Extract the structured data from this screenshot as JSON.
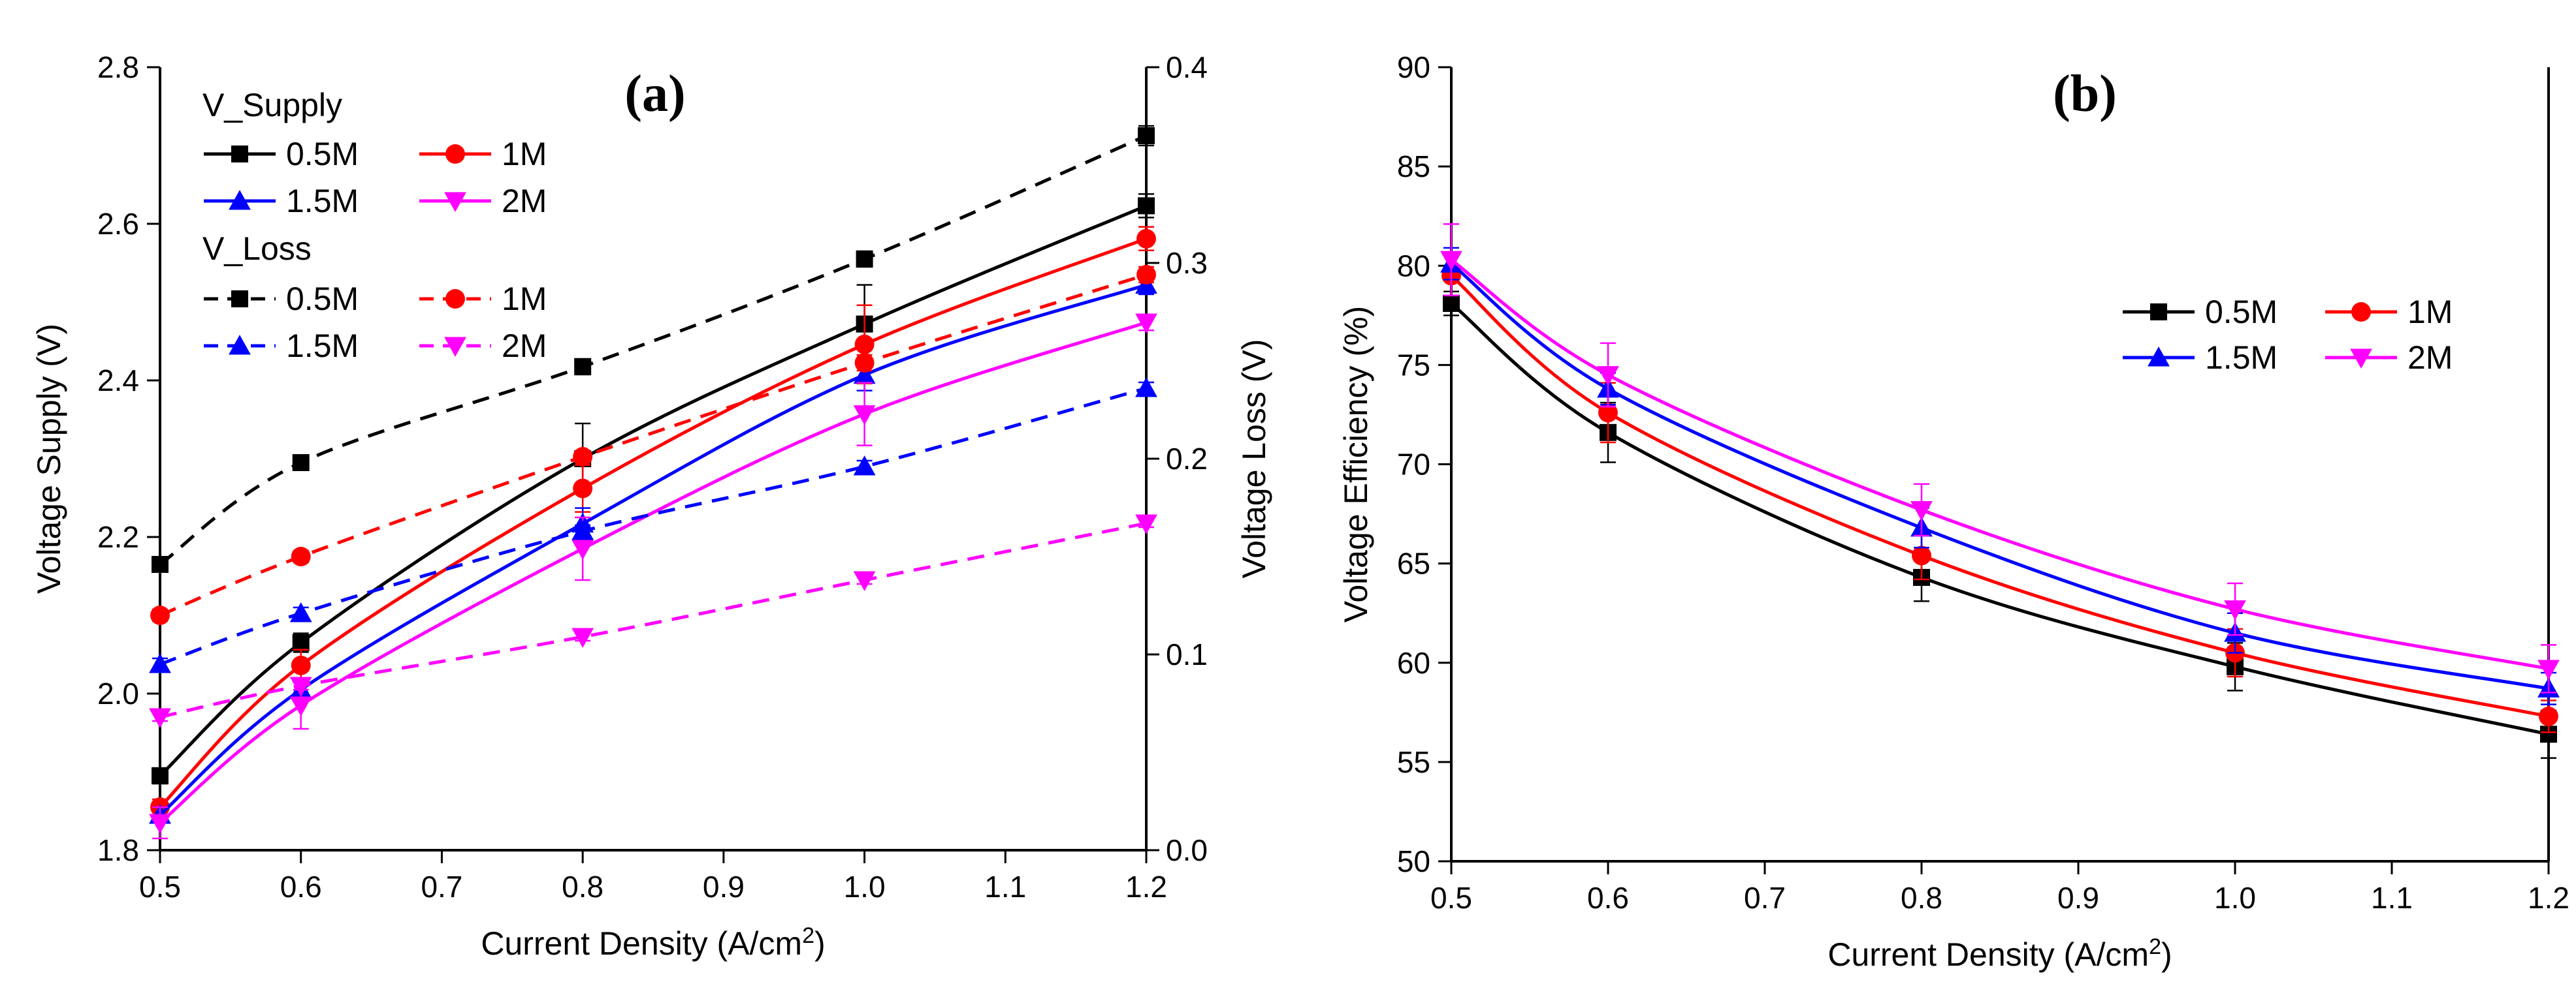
{
  "colors": {
    "0.5M": "#000000",
    "1M": "#ff0000",
    "1.5M": "#0000ff",
    "2M": "#ff00ff"
  },
  "chart_data": [
    {
      "panel": "(a)",
      "type": "line",
      "xlabel": "Current Density (A/cm",
      "xlabel_sup": "2",
      "xlabel_end": ")",
      "ylabel": "Voltage Supply (V)",
      "y2label": "Voltage Loss (V)",
      "xlim": [
        0.5,
        1.2
      ],
      "ylim": [
        1.8,
        2.8
      ],
      "y2lim": [
        0.0,
        0.4
      ],
      "x_ticks": [
        0.5,
        0.6,
        0.7,
        0.8,
        0.9,
        1.0,
        1.1,
        1.2
      ],
      "x_tick_labels": [
        "0.5",
        "0.6",
        "0.7",
        "0.8",
        "0.9",
        "1.0",
        "1.1",
        "1.2"
      ],
      "y_ticks": [
        1.8,
        2.0,
        2.2,
        2.4,
        2.6,
        2.8
      ],
      "y_tick_labels": [
        "1.8",
        "2.0",
        "2.2",
        "2.4",
        "2.6",
        "2.8"
      ],
      "y2_ticks": [
        0.0,
        0.1,
        0.2,
        0.3,
        0.4
      ],
      "y2_tick_labels": [
        "0.0",
        "0.1",
        "0.2",
        "0.3",
        "0.4"
      ],
      "legend": {
        "placement": "top-left",
        "title1": "V_Supply",
        "title2": "V_Loss",
        "entries": [
          "0.5M",
          "1M",
          "1.5M",
          "2M"
        ]
      },
      "series": [
        {
          "name": "0.5M",
          "group": "V_Supply",
          "axis": "left",
          "dash": false,
          "marker": "square",
          "x": [
            0.5,
            0.6,
            0.8,
            1.0,
            1.2
          ],
          "y": [
            1.895,
            2.065,
            2.3,
            2.472,
            2.623
          ],
          "err": [
            0.01,
            0.012,
            0.045,
            0.05,
            0.015
          ]
        },
        {
          "name": "1M",
          "group": "V_Supply",
          "axis": "left",
          "dash": false,
          "marker": "circle",
          "x": [
            0.5,
            0.6,
            0.8,
            1.0,
            1.2
          ],
          "y": [
            1.855,
            2.036,
            2.262,
            2.446,
            2.581
          ],
          "err": [
            0.01,
            0.02,
            0.03,
            0.05,
            0.015
          ]
        },
        {
          "name": "1.5M",
          "group": "V_Supply",
          "axis": "left",
          "dash": false,
          "marker": "triangle-up",
          "x": [
            0.5,
            0.6,
            0.8,
            1.0,
            1.2
          ],
          "y": [
            1.845,
            2.005,
            2.217,
            2.407,
            2.522
          ],
          "err": [
            0.01,
            0.012,
            0.02,
            0.02,
            0.012
          ]
        },
        {
          "name": "2M",
          "group": "V_Supply",
          "axis": "left",
          "dash": false,
          "marker": "triangle-down",
          "x": [
            0.5,
            0.6,
            0.8,
            1.0,
            1.2
          ],
          "y": [
            1.835,
            1.985,
            2.185,
            2.357,
            2.474
          ],
          "err": [
            0.02,
            0.03,
            0.04,
            0.04,
            0.01
          ]
        },
        {
          "name": "0.5M",
          "group": "V_Loss",
          "axis": "right",
          "dash": true,
          "marker": "square",
          "x": [
            0.5,
            0.6,
            0.8,
            1.0,
            1.2
          ],
          "y": [
            0.146,
            0.198,
            0.247,
            0.302,
            0.365
          ],
          "err": [
            0.003,
            0.003,
            0.004,
            0.004,
            0.005
          ]
        },
        {
          "name": "1M",
          "group": "V_Loss",
          "axis": "right",
          "dash": true,
          "marker": "circle",
          "x": [
            0.5,
            0.6,
            0.8,
            1.0,
            1.2
          ],
          "y": [
            0.12,
            0.15,
            0.201,
            0.249,
            0.294
          ],
          "err": [
            0.003,
            0.003,
            0.003,
            0.004,
            0.004
          ]
        },
        {
          "name": "1.5M",
          "group": "V_Loss",
          "axis": "right",
          "dash": true,
          "marker": "triangle-up",
          "x": [
            0.5,
            0.6,
            0.8,
            1.0,
            1.2
          ],
          "y": [
            0.095,
            0.121,
            0.163,
            0.196,
            0.236
          ],
          "err": [
            0.003,
            0.003,
            0.003,
            0.003,
            0.003
          ]
        },
        {
          "name": "2M",
          "group": "V_Loss",
          "axis": "right",
          "dash": true,
          "marker": "triangle-down",
          "x": [
            0.5,
            0.6,
            0.8,
            1.0,
            1.2
          ],
          "y": [
            0.068,
            0.084,
            0.109,
            0.138,
            0.167
          ],
          "err": [
            0.002,
            0.002,
            0.002,
            0.002,
            0.002
          ]
        }
      ]
    },
    {
      "panel": "(b)",
      "type": "line",
      "xlabel": "Current Density (A/cm",
      "xlabel_sup": "2",
      "xlabel_end": ")",
      "ylabel": "Voltage Efficiency (%)",
      "xlim": [
        0.5,
        1.2
      ],
      "ylim": [
        50,
        90
      ],
      "x_ticks": [
        0.5,
        0.6,
        0.7,
        0.8,
        0.9,
        1.0,
        1.1,
        1.2
      ],
      "x_tick_labels": [
        "0.5",
        "0.6",
        "0.7",
        "0.8",
        "0.9",
        "1.0",
        "1.1",
        "1.2"
      ],
      "y_ticks": [
        50,
        55,
        60,
        65,
        70,
        75,
        80,
        85,
        90
      ],
      "y_tick_labels": [
        "50",
        "55",
        "60",
        "65",
        "70",
        "75",
        "80",
        "85",
        "90"
      ],
      "legend": {
        "placement": "top-right",
        "entries": [
          "0.5M",
          "1M",
          "1.5M",
          "2M"
        ]
      },
      "series": [
        {
          "name": "0.5M",
          "marker": "square",
          "x": [
            0.5,
            0.6,
            0.8,
            1.0,
            1.2
          ],
          "y": [
            78.1,
            71.6,
            64.3,
            59.8,
            56.4
          ],
          "err": [
            0.6,
            1.5,
            1.2,
            1.2,
            1.2
          ]
        },
        {
          "name": "1M",
          "marker": "circle",
          "x": [
            0.5,
            0.6,
            0.8,
            1.0,
            1.2
          ],
          "y": [
            79.5,
            72.6,
            65.4,
            60.5,
            57.3
          ],
          "err": [
            1.0,
            1.5,
            1.2,
            1.2,
            0.8
          ]
        },
        {
          "name": "1.5M",
          "marker": "triangle-up",
          "x": [
            0.5,
            0.6,
            0.8,
            1.0,
            1.2
          ],
          "y": [
            80.1,
            73.8,
            66.8,
            61.5,
            58.7
          ],
          "err": [
            0.8,
            0.8,
            1.0,
            1.0,
            0.8
          ]
        },
        {
          "name": "2M",
          "marker": "triangle-down",
          "x": [
            0.5,
            0.6,
            0.8,
            1.0,
            1.2
          ],
          "y": [
            80.3,
            74.5,
            67.7,
            62.7,
            59.7
          ],
          "err": [
            1.8,
            1.6,
            1.3,
            1.3,
            1.2
          ]
        }
      ]
    }
  ]
}
